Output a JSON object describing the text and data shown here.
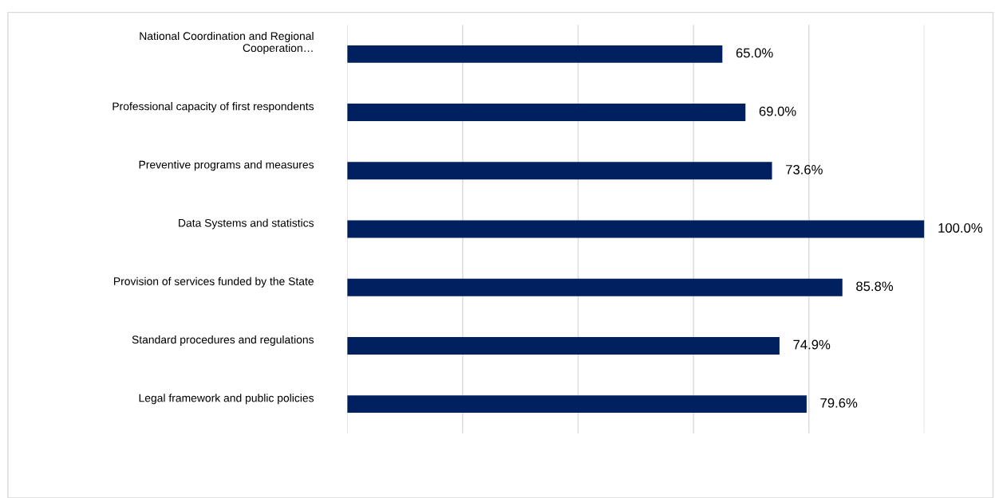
{
  "chart_data": {
    "type": "bar",
    "orientation": "horizontal",
    "categories": [
      "National Coordination and Regional\nCooperation…",
      "Professional capacity of first respondents",
      "Preventive programs and measures",
      "Data Systems and statistics",
      "Provision of services funded by the State",
      "Standard procedures and regulations",
      "Legal framework and public policies"
    ],
    "values": [
      65.0,
      69.0,
      73.6,
      100.0,
      85.8,
      74.9,
      79.6
    ],
    "value_labels": [
      "65.0%",
      "69.0%",
      "73.6%",
      "100.0%",
      "85.8%",
      "74.9%",
      "79.6%"
    ],
    "color": "#002060",
    "xlim": [
      0,
      100
    ],
    "xticks": [
      {
        "value": 0,
        "label": null
      },
      {
        "value": 20,
        "label": null
      },
      {
        "value": 40,
        "label": null
      },
      {
        "value": 60,
        "label": null
      },
      {
        "value": 80,
        "label": null
      },
      {
        "value": 100,
        "label": null
      }
    ],
    "grid": "x",
    "tick_labels": "y"
  }
}
